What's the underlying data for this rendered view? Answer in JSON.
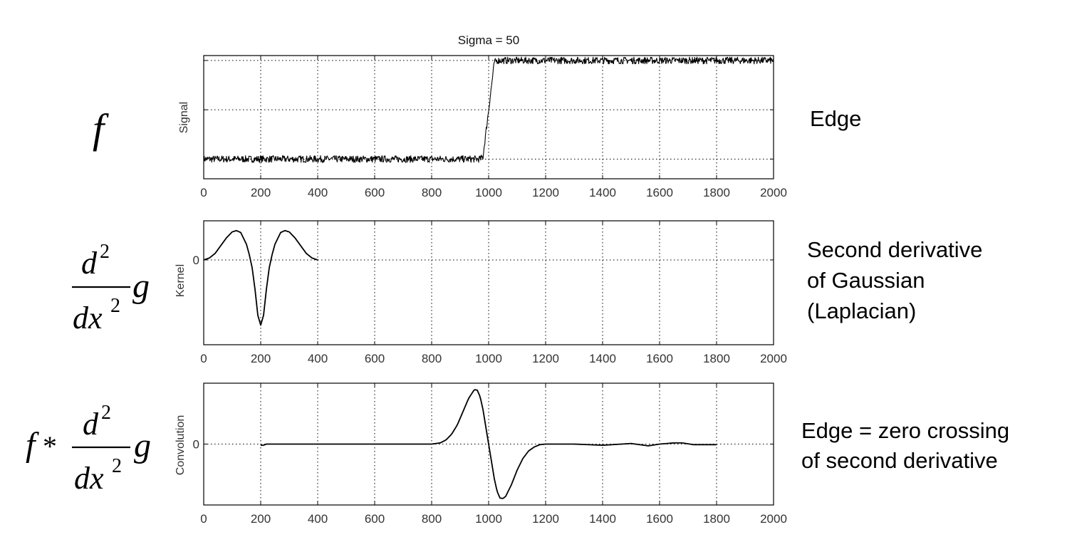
{
  "chart_data": [
    {
      "type": "line",
      "title": "Sigma = 50",
      "ylabel": "Signal",
      "xlabel": "",
      "xlim": [
        0,
        2000
      ],
      "xticks": [
        "0",
        "200",
        "400",
        "600",
        "800",
        "1000",
        "1200",
        "1400",
        "1600",
        "1800",
        "2000"
      ],
      "ylim": [
        -0.2,
        1.05
      ],
      "yticks": [],
      "grid": true,
      "series": [
        {
          "x": [
            0,
            970,
            980,
            1000,
            1020,
            1030,
            2000
          ],
          "y": [
            0,
            0,
            0.02,
            0.5,
            0.98,
            1,
            1
          ]
        }
      ],
      "noise": 0.035
    },
    {
      "type": "line",
      "ylabel": "Kernel",
      "xlabel": "",
      "xlim": [
        0,
        2000
      ],
      "xticks": [
        "0",
        "200",
        "400",
        "600",
        "800",
        "1000",
        "1200",
        "1400",
        "1600",
        "1800",
        "2000"
      ],
      "ylim": [
        -1.3,
        0.6
      ],
      "yticks": [
        "0"
      ],
      "grid": true,
      "series": [
        {
          "x": [
            0,
            20,
            40,
            60,
            80,
            100,
            115,
            130,
            150,
            160,
            170,
            180,
            190,
            200,
            210,
            220,
            230,
            240,
            250,
            270,
            285,
            300,
            320,
            340,
            360,
            380,
            400
          ],
          "y": [
            0.0,
            0.03,
            0.1,
            0.22,
            0.34,
            0.43,
            0.45,
            0.42,
            0.24,
            0.08,
            -0.12,
            -0.45,
            -0.85,
            -1.0,
            -0.85,
            -0.45,
            -0.12,
            0.08,
            0.24,
            0.42,
            0.45,
            0.43,
            0.34,
            0.22,
            0.1,
            0.03,
            0.0
          ]
        }
      ]
    },
    {
      "type": "line",
      "ylabel": "Convolution",
      "xlabel": "",
      "xlim": [
        0,
        2000
      ],
      "xticks": [
        "0",
        "200",
        "400",
        "600",
        "800",
        "1000",
        "1200",
        "1400",
        "1600",
        "1800",
        "2000"
      ],
      "ylim": [
        -1.05,
        1.05
      ],
      "yticks": [
        "0"
      ],
      "grid": true,
      "series": [
        {
          "x": [
            200,
            210,
            220,
            800,
            830,
            850,
            870,
            890,
            910,
            930,
            950,
            960,
            970,
            980,
            990,
            1000,
            1010,
            1020,
            1030,
            1040,
            1050,
            1060,
            1080,
            1100,
            1120,
            1140,
            1160,
            1180,
            1200,
            1300,
            1400,
            1500,
            1560,
            1600,
            1650,
            1680,
            1720,
            1800
          ],
          "y": [
            -0.02,
            -0.02,
            0.0,
            0.0,
            0.02,
            0.07,
            0.17,
            0.33,
            0.56,
            0.79,
            0.94,
            0.93,
            0.82,
            0.6,
            0.3,
            0.0,
            -0.3,
            -0.6,
            -0.82,
            -0.93,
            -0.94,
            -0.9,
            -0.7,
            -0.45,
            -0.25,
            -0.12,
            -0.05,
            -0.01,
            0.0,
            0.0,
            -0.02,
            0.01,
            -0.03,
            0.0,
            0.02,
            0.02,
            -0.01,
            -0.01
          ]
        }
      ]
    }
  ],
  "math": {
    "f": "f",
    "kernel_num": "d",
    "kernel_num_exp": "2",
    "kernel_den": "dx",
    "kernel_den_exp": "2",
    "kernel_g": "g",
    "conv_f": "f",
    "conv_star": "*",
    "conv_num": "d",
    "conv_num_exp": "2",
    "conv_den": "dx",
    "conv_den_exp": "2",
    "conv_g": "g"
  },
  "annotations": {
    "edge": "Edge",
    "kernel_line1": "Second derivative",
    "kernel_line2": "of Gaussian",
    "kernel_line3": "(Laplacian)",
    "conv_line1": "Edge = zero crossing",
    "conv_line2": "of second derivative"
  }
}
